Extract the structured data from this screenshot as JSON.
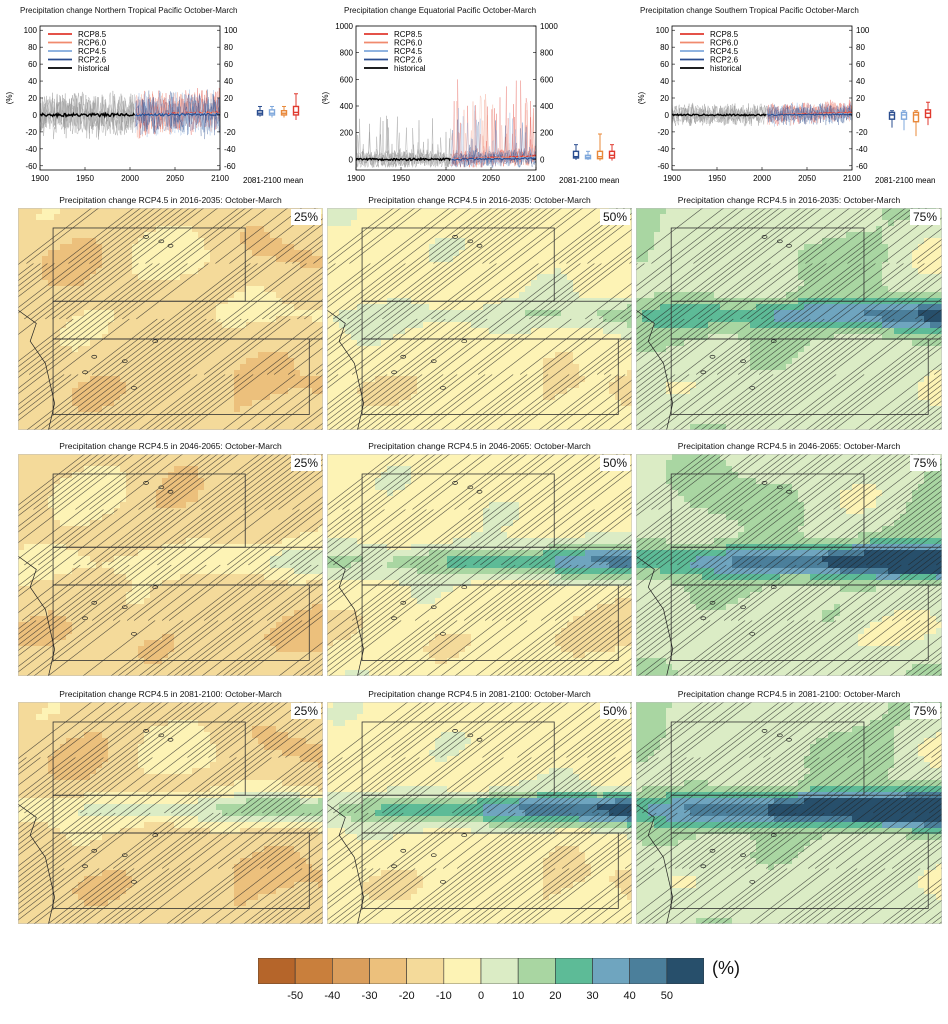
{
  "chart_data": [
    {
      "type": "line",
      "title": "Precipitation change Northern Tropical Pacific October-March",
      "ylabel": "(%)",
      "xlim": [
        1900,
        2100
      ],
      "ylim": [
        -65,
        105
      ],
      "yticks": [
        -60,
        -40,
        -20,
        0,
        20,
        40,
        60,
        80,
        100
      ],
      "xticks": [
        1900,
        1950,
        2000,
        2050,
        2100
      ],
      "series": [
        {
          "name": "RCP8.5",
          "color": "#e03a2f"
        },
        {
          "name": "RCP6.0",
          "color": "#f08a6e"
        },
        {
          "name": "RCP4.5",
          "color": "#7fa8dc"
        },
        {
          "name": "RCP2.6",
          "color": "#2a4d8f"
        },
        {
          "name": "historical",
          "color": "#000000"
        }
      ],
      "noise_amp": 25,
      "mean_label": "2081-2100 mean",
      "box_stats": [
        {
          "name": "RCP2.6",
          "min": -2,
          "q1": 0,
          "median": 2,
          "q3": 5,
          "max": 10,
          "color": "#2a4d8f"
        },
        {
          "name": "RCP4.5",
          "min": -3,
          "q1": 0,
          "median": 2,
          "q3": 6,
          "max": 10,
          "color": "#7fa8dc"
        },
        {
          "name": "RCP6.0",
          "min": -3,
          "q1": 0,
          "median": 2,
          "q3": 5,
          "max": 10,
          "color": "#e8883a"
        },
        {
          "name": "RCP8.5",
          "min": -6,
          "q1": 0,
          "median": 3,
          "q3": 10,
          "max": 25,
          "color": "#e03a2f"
        }
      ]
    },
    {
      "type": "line",
      "title": "Precipitation change Equatorial Pacific October-March",
      "ylabel": "(%)",
      "xlim": [
        1900,
        2100
      ],
      "ylim": [
        -80,
        1000
      ],
      "yticks": [
        0,
        200,
        400,
        600,
        800,
        1000
      ],
      "xticks": [
        1900,
        1950,
        2000,
        2050,
        2100
      ],
      "series": [
        {
          "name": "RCP8.5",
          "color": "#e03a2f"
        },
        {
          "name": "RCP6.0",
          "color": "#f08a6e"
        },
        {
          "name": "RCP4.5",
          "color": "#7fa8dc"
        },
        {
          "name": "RCP2.6",
          "color": "#2a4d8f"
        },
        {
          "name": "historical",
          "color": "#000000"
        }
      ],
      "noise_amp": 110,
      "mean_label": "2081-2100 mean",
      "box_stats": [
        {
          "name": "RCP2.6",
          "min": -5,
          "q1": 10,
          "median": 20,
          "q3": 60,
          "max": 110,
          "color": "#2a4d8f"
        },
        {
          "name": "RCP4.5",
          "min": -5,
          "q1": 5,
          "median": 15,
          "q3": 30,
          "max": 60,
          "color": "#7fa8dc"
        },
        {
          "name": "RCP6.0",
          "min": -10,
          "q1": 5,
          "median": 20,
          "q3": 60,
          "max": 190,
          "color": "#e8883a"
        },
        {
          "name": "RCP8.5",
          "min": -10,
          "q1": 10,
          "median": 30,
          "q3": 60,
          "max": 110,
          "color": "#e03a2f"
        }
      ]
    },
    {
      "type": "line",
      "title": "Precipitation change Southern Tropical Pacific October-March",
      "ylabel": "(%)",
      "xlim": [
        1900,
        2100
      ],
      "ylim": [
        -65,
        105
      ],
      "yticks": [
        -60,
        -40,
        -20,
        0,
        20,
        40,
        60,
        80,
        100
      ],
      "xticks": [
        1900,
        1950,
        2000,
        2050,
        2100
      ],
      "series": [
        {
          "name": "RCP8.5",
          "color": "#e03a2f"
        },
        {
          "name": "RCP6.0",
          "color": "#f08a6e"
        },
        {
          "name": "RCP4.5",
          "color": "#7fa8dc"
        },
        {
          "name": "RCP2.6",
          "color": "#2a4d8f"
        },
        {
          "name": "historical",
          "color": "#000000"
        }
      ],
      "noise_amp": 12,
      "mean_label": "2081-2100 mean",
      "box_stats": [
        {
          "name": "RCP2.6",
          "min": -15,
          "q1": -5,
          "median": 0,
          "q3": 3,
          "max": 5,
          "color": "#2a4d8f"
        },
        {
          "name": "RCP4.5",
          "min": -18,
          "q1": -5,
          "median": 0,
          "q3": 3,
          "max": 5,
          "color": "#7fa8dc"
        },
        {
          "name": "RCP6.0",
          "min": -25,
          "q1": -8,
          "median": 0,
          "q3": 3,
          "max": 5,
          "color": "#e8883a"
        },
        {
          "name": "RCP8.5",
          "min": -12,
          "q1": -3,
          "median": 2,
          "q3": 6,
          "max": 15,
          "color": "#e03a2f"
        }
      ]
    },
    {
      "type": "heatmap",
      "maps": [
        {
          "title": "Precipitation change RCP4.5 in 2016-2035: October-March",
          "percentile": "25%",
          "band_strength": 5
        },
        {
          "title": "Precipitation change RCP4.5 in 2016-2035: October-March",
          "percentile": "50%",
          "band_strength": 15
        },
        {
          "title": "Precipitation change RCP4.5 in 2016-2035: October-March",
          "percentile": "75%",
          "band_strength": 38
        },
        {
          "title": "Precipitation change RCP4.5 in 2046-2065: October-March",
          "percentile": "25%",
          "band_strength": 15
        },
        {
          "title": "Precipitation change RCP4.5 in 2046-2065: October-March",
          "percentile": "50%",
          "band_strength": 40
        },
        {
          "title": "Precipitation change RCP4.5 in 2046-2065: October-March",
          "percentile": "75%",
          "band_strength": 60
        },
        {
          "title": "Precipitation change RCP4.5 in 2081-2100: October-March",
          "percentile": "25%",
          "band_strength": 30
        },
        {
          "title": "Precipitation change RCP4.5 in 2081-2100: October-March",
          "percentile": "50%",
          "band_strength": 55
        },
        {
          "title": "Precipitation change RCP4.5 in 2081-2100: October-March",
          "percentile": "75%",
          "band_strength": 75
        }
      ],
      "colorbar": {
        "unit": "(%)",
        "ticks": [
          "-50",
          "-40",
          "-30",
          "-20",
          "-10",
          "0",
          "10",
          "20",
          "30",
          "40",
          "50"
        ],
        "levels": [
          -55,
          -50,
          -40,
          -30,
          -20,
          -10,
          0,
          10,
          20,
          30,
          40,
          50
        ],
        "colors": [
          "#b5652a",
          "#c97f3c",
          "#da9e5c",
          "#ecc07c",
          "#f4da9a",
          "#fdf3b5",
          "#dbecc5",
          "#a9d6a2",
          "#5dbb97",
          "#6fa5bf",
          "#4b7f9b",
          "#274f6b"
        ]
      }
    }
  ]
}
